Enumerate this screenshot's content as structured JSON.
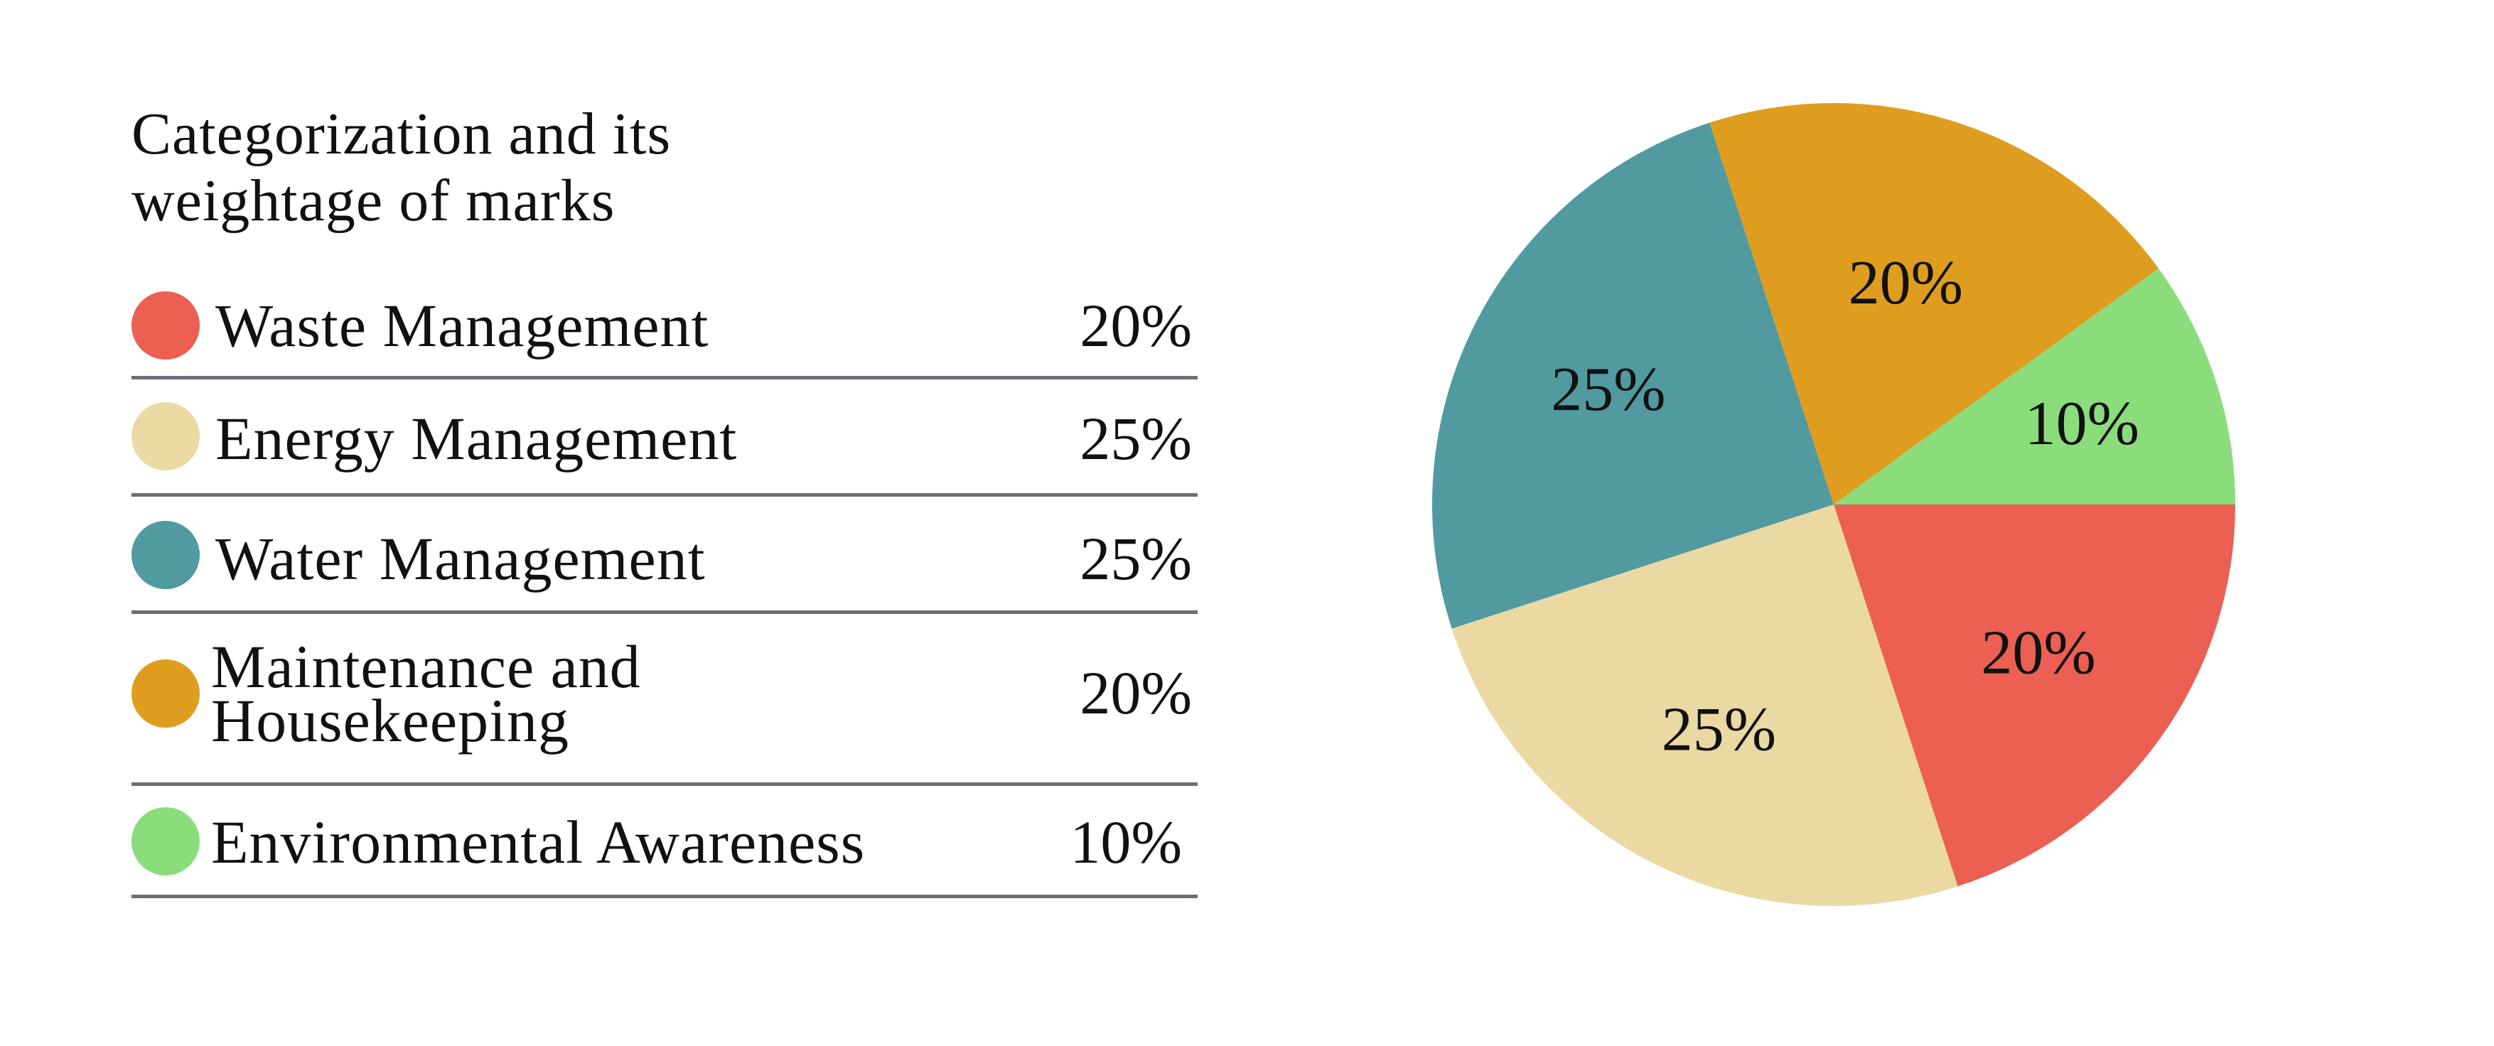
{
  "header": {
    "title_line1": "Categorization and its",
    "title_line2": "weightage of marks"
  },
  "legend": [
    {
      "label": "Waste Management",
      "value_text": "20%",
      "color": "#EB6052"
    },
    {
      "label": "Energy Management",
      "value_text": "25%",
      "color": "#EAD9A3"
    },
    {
      "label": "Water Management",
      "value_text": "25%",
      "color": "#519AA0"
    },
    {
      "label": "Maintenance and Housekeeping",
      "value_text": "20%",
      "color": "#DF9D20"
    },
    {
      "label": "Environmental Awareness",
      "value_text": "10%",
      "color": "#8BDD7C"
    }
  ],
  "chart_data": {
    "type": "pie",
    "title": "Categorization and its weightage of marks",
    "categories": [
      "Waste Management",
      "Energy Management",
      "Water Management",
      "Maintenance and Housekeeping",
      "Environmental Awareness"
    ],
    "values": [
      20,
      25,
      25,
      20,
      10
    ],
    "labels": [
      "20%",
      "25%",
      "25%",
      "20%",
      "10%"
    ],
    "colors": [
      "#EB6052",
      "#EAD9A3",
      "#519AA0",
      "#DF9D20",
      "#8BDD7C"
    ],
    "start_direction": "3 o'clock",
    "direction": "clockwise",
    "legend_position": "left"
  }
}
